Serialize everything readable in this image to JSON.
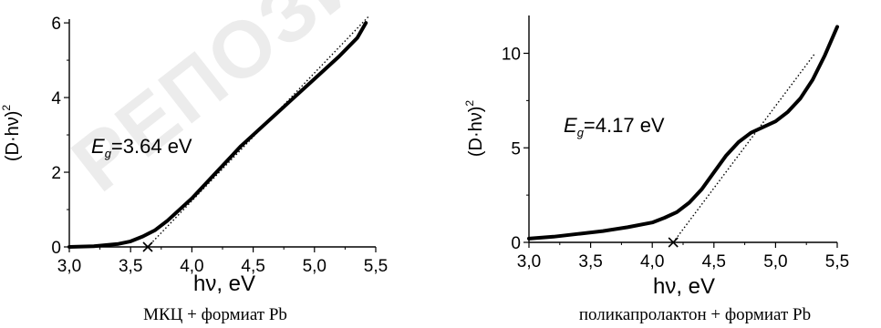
{
  "watermark": "РЕПОЗИТОРИЙ ГГУ",
  "chart_data": [
    {
      "type": "line",
      "caption": "МКЦ + формиат Pb",
      "xlabel": "hν, eV",
      "ylabel": "(D·hν)",
      "ylabel_exp": "2",
      "xlim": [
        3.0,
        5.5
      ],
      "ylim": [
        0,
        6.1
      ],
      "xticks": [
        "3,0",
        "3,5",
        "4,0",
        "4,5",
        "5,0",
        "5,5"
      ],
      "xtick_values": [
        3.0,
        3.5,
        4.0,
        4.5,
        5.0,
        5.5
      ],
      "yticks": [
        "0",
        "2",
        "4",
        "6"
      ],
      "ytick_values": [
        0,
        2,
        4,
        6
      ],
      "annotation": {
        "symbol": "E",
        "sub": "g",
        "text": "=3.64 eV"
      },
      "eg": 3.64,
      "series": [
        {
          "style": "solid",
          "x": [
            3.0,
            3.2,
            3.4,
            3.5,
            3.6,
            3.7,
            3.8,
            4.0,
            4.2,
            4.4,
            4.6,
            4.8,
            5.0,
            5.2,
            5.35,
            5.42
          ],
          "y": [
            0.0,
            0.02,
            0.08,
            0.15,
            0.28,
            0.45,
            0.7,
            1.3,
            2.0,
            2.7,
            3.3,
            3.9,
            4.5,
            5.1,
            5.6,
            6.0
          ]
        },
        {
          "style": "dotted",
          "x": [
            3.64,
            5.45
          ],
          "y": [
            0.0,
            6.2
          ]
        }
      ]
    },
    {
      "type": "line",
      "caption": "поликапролактон + формиат Pb",
      "xlabel": "hν, eV",
      "ylabel": "(D·hν)",
      "ylabel_exp": "2",
      "xlim": [
        3.0,
        5.5
      ],
      "ylim": [
        0,
        12
      ],
      "xticks": [
        "3,0",
        "3,5",
        "4,0",
        "4,5",
        "5,0",
        "5,5"
      ],
      "xtick_values": [
        3.0,
        3.5,
        4.0,
        4.5,
        5.0,
        5.5
      ],
      "yticks": [
        "0",
        "5",
        "10"
      ],
      "ytick_values": [
        0,
        5,
        10
      ],
      "annotation": {
        "symbol": "E",
        "sub": "g",
        "text": "=4.17 eV"
      },
      "eg": 4.17,
      "series": [
        {
          "style": "solid",
          "x": [
            3.0,
            3.2,
            3.4,
            3.6,
            3.8,
            4.0,
            4.1,
            4.2,
            4.3,
            4.4,
            4.5,
            4.6,
            4.7,
            4.8,
            4.9,
            5.0,
            5.1,
            5.2,
            5.3,
            5.4,
            5.5
          ],
          "y": [
            0.2,
            0.3,
            0.45,
            0.6,
            0.8,
            1.05,
            1.3,
            1.6,
            2.1,
            2.8,
            3.7,
            4.6,
            5.3,
            5.8,
            6.1,
            6.4,
            6.9,
            7.6,
            8.6,
            9.9,
            11.4
          ]
        },
        {
          "style": "dotted",
          "x": [
            4.17,
            5.32
          ],
          "y": [
            0.0,
            10.0
          ]
        }
      ]
    }
  ]
}
